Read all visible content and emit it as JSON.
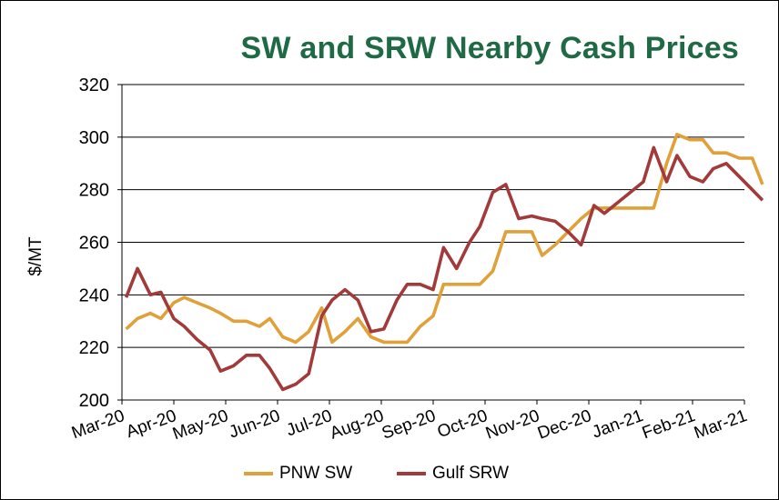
{
  "chart_data": {
    "type": "line",
    "title": "SW and SRW Nearby Cash Prices",
    "xlabel": "",
    "ylabel": "$/MT",
    "ylim": [
      200,
      320
    ],
    "yticks": [
      200,
      220,
      240,
      260,
      280,
      300,
      320
    ],
    "xticks": [
      "Mar-20",
      "Apr-20",
      "May-20",
      "Jun-20",
      "Jul-20",
      "Aug-20",
      "Sep-20",
      "Oct-20",
      "Nov-20",
      "Dec-20",
      "Jan-21",
      "Feb-21",
      "Mar-21"
    ],
    "grid": true,
    "legend_position": "bottom",
    "series": [
      {
        "name": "PNW SW",
        "color": "#e0a03a",
        "points": [
          [
            0.08,
            227
          ],
          [
            0.3,
            231
          ],
          [
            0.55,
            233
          ],
          [
            0.75,
            231
          ],
          [
            1.0,
            237
          ],
          [
            1.2,
            239
          ],
          [
            1.45,
            237
          ],
          [
            1.7,
            235
          ],
          [
            1.9,
            233
          ],
          [
            2.15,
            230
          ],
          [
            2.4,
            230
          ],
          [
            2.65,
            228
          ],
          [
            2.85,
            231
          ],
          [
            3.1,
            224
          ],
          [
            3.35,
            222
          ],
          [
            3.6,
            226
          ],
          [
            3.85,
            235
          ],
          [
            4.05,
            222
          ],
          [
            4.3,
            226
          ],
          [
            4.55,
            231
          ],
          [
            4.8,
            224
          ],
          [
            5.05,
            222
          ],
          [
            5.3,
            222
          ],
          [
            5.5,
            222
          ],
          [
            5.75,
            228
          ],
          [
            6.0,
            232
          ],
          [
            6.2,
            244
          ],
          [
            6.45,
            244
          ],
          [
            6.7,
            244
          ],
          [
            6.9,
            244
          ],
          [
            7.15,
            249
          ],
          [
            7.4,
            264
          ],
          [
            7.65,
            264
          ],
          [
            7.9,
            264
          ],
          [
            8.1,
            255
          ],
          [
            8.35,
            259
          ],
          [
            8.6,
            264
          ],
          [
            8.85,
            269
          ],
          [
            9.1,
            273
          ],
          [
            9.3,
            273
          ],
          [
            9.55,
            273
          ],
          [
            9.8,
            273
          ],
          [
            10.05,
            273
          ],
          [
            10.25,
            273
          ],
          [
            10.5,
            290
          ],
          [
            10.7,
            301
          ],
          [
            10.95,
            299
          ],
          [
            11.2,
            299
          ],
          [
            11.4,
            294
          ],
          [
            11.65,
            294
          ],
          [
            11.9,
            292
          ],
          [
            12.15,
            292
          ],
          [
            12.35,
            282
          ]
        ]
      },
      {
        "name": "Gulf SRW",
        "color": "#a33a3a",
        "points": [
          [
            0.08,
            239
          ],
          [
            0.3,
            250
          ],
          [
            0.55,
            240
          ],
          [
            0.75,
            241
          ],
          [
            1.0,
            231
          ],
          [
            1.2,
            228
          ],
          [
            1.45,
            223
          ],
          [
            1.7,
            219
          ],
          [
            1.9,
            211
          ],
          [
            2.15,
            213
          ],
          [
            2.4,
            217
          ],
          [
            2.65,
            217
          ],
          [
            2.85,
            212
          ],
          [
            3.1,
            204
          ],
          [
            3.35,
            206
          ],
          [
            3.6,
            210
          ],
          [
            3.85,
            232
          ],
          [
            4.05,
            238
          ],
          [
            4.3,
            242
          ],
          [
            4.55,
            238
          ],
          [
            4.8,
            226
          ],
          [
            5.05,
            227
          ],
          [
            5.3,
            238
          ],
          [
            5.5,
            244
          ],
          [
            5.75,
            244
          ],
          [
            6.0,
            242
          ],
          [
            6.2,
            258
          ],
          [
            6.45,
            250
          ],
          [
            6.7,
            260
          ],
          [
            6.9,
            266
          ],
          [
            7.15,
            279
          ],
          [
            7.4,
            282
          ],
          [
            7.65,
            269
          ],
          [
            7.9,
            270
          ],
          [
            8.1,
            269
          ],
          [
            8.35,
            268
          ],
          [
            8.6,
            264
          ],
          [
            8.85,
            259
          ],
          [
            9.1,
            274
          ],
          [
            9.3,
            271
          ],
          [
            9.55,
            275
          ],
          [
            9.8,
            279
          ],
          [
            10.05,
            283
          ],
          [
            10.25,
            296
          ],
          [
            10.5,
            283
          ],
          [
            10.7,
            293
          ],
          [
            10.95,
            285
          ],
          [
            11.2,
            283
          ],
          [
            11.4,
            288
          ],
          [
            11.65,
            290
          ],
          [
            11.9,
            285
          ],
          [
            12.15,
            280
          ],
          [
            12.35,
            276
          ]
        ]
      }
    ]
  }
}
